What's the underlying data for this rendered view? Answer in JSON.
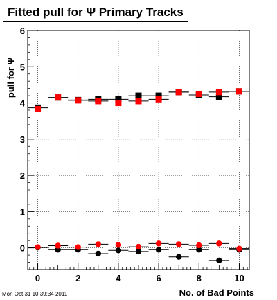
{
  "header": {
    "title": "Fitted pull for Ψ  Primary Tracks"
  },
  "footer": {
    "stamp": "Mon Oct 31 10:39:34 2011"
  },
  "chart_data": {
    "type": "scatter",
    "title": "Fitted pull for Ψ  Primary Tracks",
    "xlabel": "No. of Bad Points",
    "ylabel": "pull for Ψ",
    "xlim": [
      -0.5,
      10.5
    ],
    "ylim": [
      -0.6,
      6.0
    ],
    "x_ticks": [
      0,
      2,
      4,
      6,
      8,
      10
    ],
    "y_ticks": [
      0,
      1,
      2,
      3,
      4,
      5,
      6
    ],
    "grid": true,
    "x": [
      0,
      1,
      2,
      3,
      4,
      5,
      6,
      7,
      8,
      9,
      10
    ],
    "series": [
      {
        "marker": "square",
        "color": "#000000",
        "values": [
          3.87,
          4.15,
          4.08,
          4.1,
          4.1,
          4.2,
          4.2,
          4.3,
          4.22,
          4.17,
          4.32
        ]
      },
      {
        "marker": "square",
        "color": "#ff0000",
        "values": [
          3.83,
          4.15,
          4.07,
          4.05,
          4.0,
          4.05,
          4.1,
          4.3,
          4.25,
          4.3,
          4.32
        ]
      },
      {
        "marker": "circle",
        "color": "#000000",
        "values": [
          0.01,
          -0.05,
          -0.05,
          -0.16,
          -0.07,
          -0.1,
          -0.05,
          -0.25,
          -0.05,
          -0.35,
          -0.05
        ]
      },
      {
        "marker": "circle",
        "color": "#ff0000",
        "values": [
          0.02,
          0.06,
          0.02,
          0.1,
          0.08,
          0.03,
          0.12,
          0.1,
          0.07,
          0.12,
          -0.02
        ]
      }
    ]
  }
}
